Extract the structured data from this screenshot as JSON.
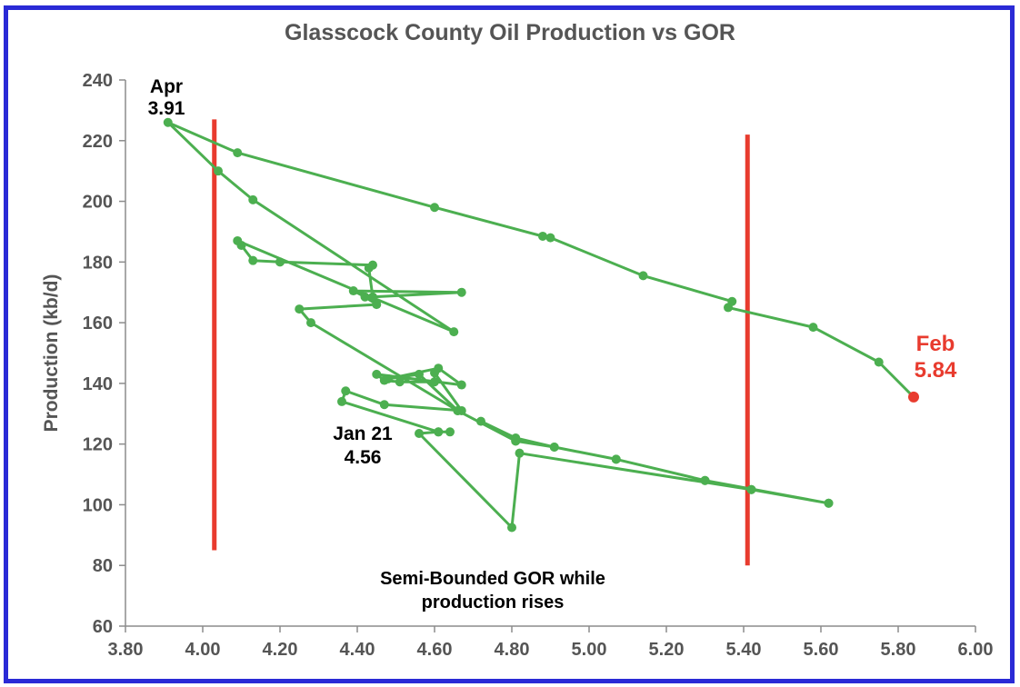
{
  "chart_data": {
    "type": "scatter",
    "title": "Glasscock County Oil Production vs GOR",
    "xlabel": "",
    "ylabel": "Production (kb/d)",
    "xlim": [
      3.8,
      6.0
    ],
    "ylim": [
      60,
      240
    ],
    "x_ticks": [
      "3.80",
      "4.00",
      "4.20",
      "4.40",
      "4.60",
      "4.80",
      "5.00",
      "5.20",
      "5.40",
      "5.60",
      "5.80",
      "6.00"
    ],
    "y_ticks": [
      "60",
      "80",
      "100",
      "120",
      "140",
      "160",
      "180",
      "200",
      "220",
      "240"
    ],
    "grid": false,
    "legend": "none",
    "series": [
      {
        "color": "#4caf50",
        "points": [
          [
            5.62,
            100.5
          ],
          [
            5.3,
            108
          ],
          [
            5.07,
            115
          ],
          [
            4.91,
            119
          ],
          [
            4.81,
            122
          ],
          [
            4.72,
            127.5
          ],
          [
            4.81,
            121
          ],
          [
            4.66,
            131
          ],
          [
            4.56,
            143
          ],
          [
            4.48,
            141.5
          ],
          [
            4.61,
            145
          ],
          [
            4.67,
            139.5
          ],
          [
            4.45,
            143
          ],
          [
            4.47,
            141
          ],
          [
            4.51,
            140.5
          ],
          [
            4.6,
            140.5
          ],
          [
            4.6,
            143.5
          ],
          [
            4.67,
            131
          ],
          [
            4.47,
            133
          ],
          [
            4.37,
            137.5
          ],
          [
            4.36,
            134
          ],
          [
            4.61,
            124
          ],
          [
            4.64,
            124
          ],
          [
            4.61,
            124
          ],
          [
            4.56,
            123.5
          ],
          [
            4.8,
            92.5
          ],
          [
            4.82,
            117
          ],
          [
            5.42,
            105
          ],
          [
            5.62,
            100.5
          ],
          [
            5.42,
            105
          ],
          [
            5.3,
            108
          ],
          [
            5.07,
            115
          ],
          [
            4.91,
            119
          ],
          [
            4.81,
            121
          ],
          [
            4.66,
            131
          ],
          [
            4.28,
            160
          ],
          [
            4.25,
            164.5
          ],
          [
            4.45,
            166
          ],
          [
            4.42,
            168.5
          ],
          [
            4.39,
            170.5
          ],
          [
            4.67,
            170
          ],
          [
            4.44,
            168.5
          ],
          [
            4.43,
            178
          ],
          [
            4.44,
            179
          ],
          [
            4.2,
            180
          ],
          [
            4.13,
            180.5
          ],
          [
            4.1,
            185.5
          ],
          [
            4.09,
            187
          ],
          [
            4.65,
            157
          ],
          [
            4.13,
            200.5
          ],
          [
            4.04,
            210
          ],
          [
            3.91,
            226
          ],
          [
            4.09,
            216
          ],
          [
            4.6,
            198
          ],
          [
            4.88,
            188.5
          ],
          [
            4.9,
            188
          ],
          [
            5.14,
            175.5
          ],
          [
            5.37,
            167
          ],
          [
            5.36,
            165
          ],
          [
            5.58,
            158.5
          ],
          [
            5.75,
            147
          ],
          [
            5.84,
            135.5
          ]
        ]
      }
    ],
    "highlight_point": {
      "x": 5.84,
      "y": 135.5,
      "color": "#e83b2e"
    },
    "red_lines": [
      {
        "x": 4.03,
        "y0": 85,
        "y1": 227,
        "color": "#e83b2e"
      },
      {
        "x": 5.41,
        "y0": 80,
        "y1": 222,
        "color": "#e83b2e"
      }
    ],
    "annotations": [
      {
        "id": "apr",
        "lines": [
          "Apr",
          "3.91"
        ],
        "color": "#000000"
      },
      {
        "id": "feb",
        "lines": [
          "Feb",
          "5.84"
        ],
        "color": "#e83b2e"
      },
      {
        "id": "jan",
        "lines": [
          "Jan 21",
          "4.56"
        ],
        "color": "#000000"
      },
      {
        "id": "semi",
        "lines": [
          "Semi-Bounded GOR while",
          "production rises"
        ],
        "color": "#000000"
      }
    ]
  }
}
